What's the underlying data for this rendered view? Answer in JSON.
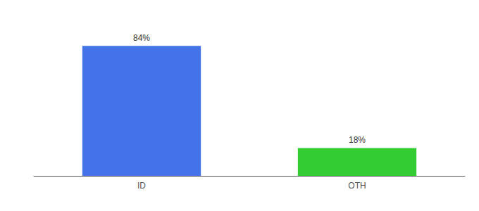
{
  "chart_data": {
    "type": "bar",
    "categories": [
      "ID",
      "OTH"
    ],
    "values": [
      84,
      18
    ],
    "value_labels": [
      "84%",
      "18%"
    ],
    "colors": [
      "#4472e8",
      "#33cc33"
    ],
    "ylim": [
      0,
      100
    ],
    "grid": false,
    "data_labels": true,
    "tick_labels": "x"
  }
}
